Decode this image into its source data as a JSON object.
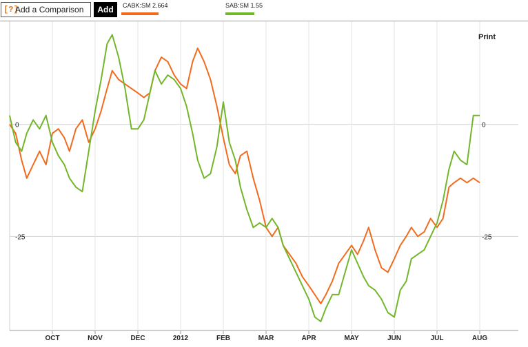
{
  "toolbar": {
    "help_icon": "[?]",
    "compare_placeholder": "Add a Comparison",
    "add_label": "Add",
    "print_label": "Print"
  },
  "legend": [
    {
      "label": "CABK:SM  2.664",
      "color": "#f26b1d"
    },
    {
      "label": "SAB:SM  1.55",
      "color": "#72b62a"
    }
  ],
  "chart_data": {
    "type": "line",
    "title": "",
    "xlabel": "",
    "ylabel": "",
    "x_categories": [
      "OCT",
      "NOV",
      "DEC",
      "2012",
      "FEB",
      "MAR",
      "APR",
      "MAY",
      "JUN",
      "JUL",
      "AUG"
    ],
    "ylim": [
      -46,
      23
    ],
    "y_ticks": [
      {
        "value": 0,
        "label_left": "0",
        "label_right": "0"
      },
      {
        "value": -25,
        "label_left": "-25",
        "label_right": "-25"
      }
    ],
    "grid": true,
    "series": [
      {
        "name": "CABK:SM",
        "color": "#f26b1d",
        "x": [
          0,
          0.14,
          0.28,
          0.4,
          0.55,
          0.7,
          0.85,
          1,
          1.14,
          1.28,
          1.4,
          1.55,
          1.7,
          1.85,
          2,
          2.14,
          2.28,
          2.4,
          2.55,
          2.7,
          2.85,
          3,
          3.14,
          3.28,
          3.4,
          3.55,
          3.7,
          3.85,
          4,
          4.14,
          4.28,
          4.4,
          4.55,
          4.7,
          4.85,
          5,
          5.14,
          5.28,
          5.4,
          5.55,
          5.7,
          5.85,
          6,
          6.14,
          6.28,
          6.4,
          6.55,
          6.7,
          6.85,
          7,
          7.14,
          7.28,
          7.4,
          7.55,
          7.7,
          7.85,
          8,
          8.14,
          8.28,
          8.4,
          8.55,
          8.7,
          8.85,
          9,
          9.14,
          9.28,
          9.4,
          9.55,
          9.7,
          9.85,
          10,
          10.14,
          10.28,
          10.4,
          10.55,
          10.7,
          10.85,
          11
        ],
        "values": [
          0,
          -2,
          -8,
          -12,
          -9,
          -6,
          -9,
          -2,
          -1,
          -3,
          -6,
          -1,
          1,
          -4,
          -1,
          3,
          8,
          12,
          10,
          9,
          8,
          7,
          6,
          7,
          12,
          15,
          14,
          11,
          9,
          8,
          14,
          17,
          14,
          10,
          4,
          -3,
          -9,
          -11,
          -7,
          -6,
          -12,
          -17,
          -23,
          -25,
          -23,
          -27,
          -29,
          -31,
          -34,
          -36,
          -38,
          -40,
          -38,
          -35,
          -31,
          -29,
          -27,
          -29,
          -26,
          -23,
          -28,
          -32,
          -33,
          -30,
          -27,
          -25,
          -23,
          -25,
          -24,
          -21,
          -23,
          -21,
          -14,
          -13,
          -12,
          -13,
          -12,
          -13
        ]
      },
      {
        "name": "SAB:SM",
        "color": "#72b62a",
        "x": [
          0,
          0.14,
          0.28,
          0.4,
          0.55,
          0.7,
          0.85,
          1,
          1.14,
          1.28,
          1.4,
          1.55,
          1.7,
          1.85,
          2,
          2.14,
          2.28,
          2.4,
          2.55,
          2.7,
          2.85,
          3,
          3.14,
          3.28,
          3.4,
          3.55,
          3.7,
          3.85,
          4,
          4.14,
          4.28,
          4.4,
          4.55,
          4.7,
          4.85,
          5,
          5.14,
          5.28,
          5.4,
          5.55,
          5.7,
          5.85,
          6,
          6.14,
          6.28,
          6.4,
          6.55,
          6.7,
          6.85,
          7,
          7.14,
          7.28,
          7.4,
          7.55,
          7.7,
          7.85,
          8,
          8.14,
          8.28,
          8.4,
          8.55,
          8.7,
          8.85,
          9,
          9.14,
          9.28,
          9.4,
          9.55,
          9.7,
          9.85,
          10,
          10.14,
          10.28,
          10.4,
          10.55,
          10.7,
          10.85,
          11
        ],
        "values": [
          2,
          -4,
          -6,
          -2,
          1,
          -1,
          2,
          -4,
          -7,
          -9,
          -12,
          -14,
          -15,
          -6,
          3,
          10,
          18,
          20,
          15,
          8,
          -1,
          -1,
          1,
          7,
          12,
          9,
          11,
          10,
          8,
          4,
          -2,
          -8,
          -12,
          -11,
          -5,
          5,
          -4,
          -8,
          -14,
          -19,
          -23,
          -22,
          -23,
          -21,
          -23,
          -27,
          -30,
          -33,
          -36,
          -39,
          -43,
          -44,
          -41,
          -38,
          -38,
          -33,
          -28,
          -31,
          -34,
          -36,
          -37,
          -39,
          -42,
          -43,
          -37,
          -35,
          -30,
          -29,
          -28,
          -25,
          -22,
          -17,
          -10,
          -6,
          -8,
          -9,
          2,
          2
        ]
      }
    ]
  }
}
